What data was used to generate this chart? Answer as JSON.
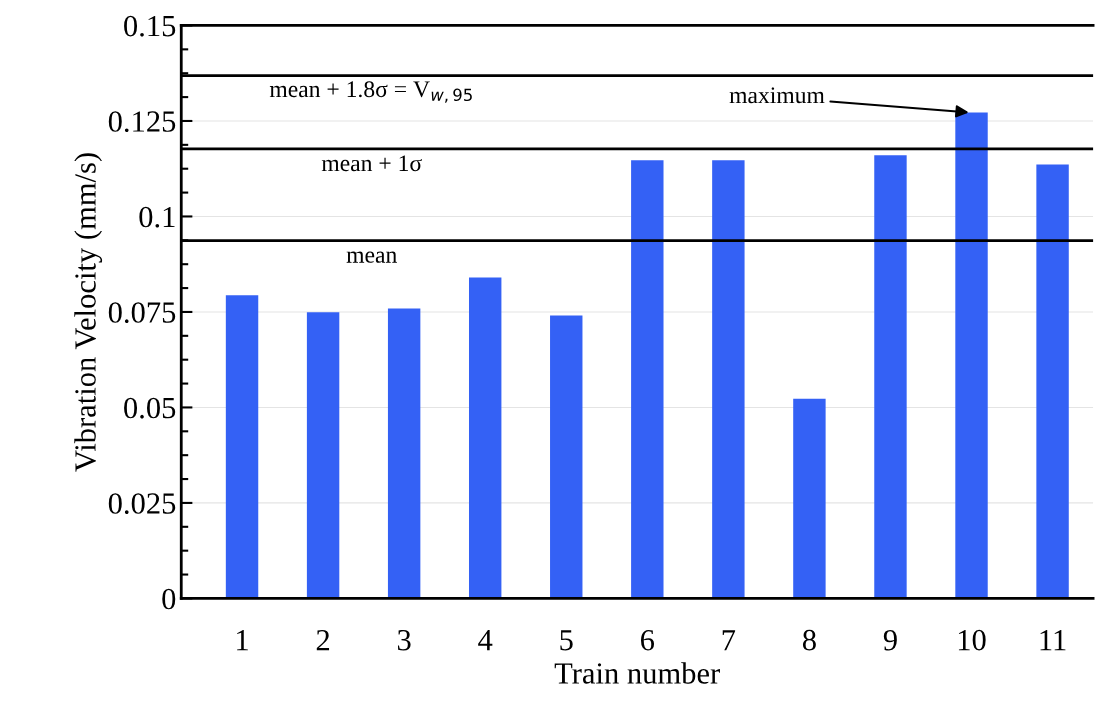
{
  "chart_data": {
    "type": "bar",
    "xlabel": "Train number",
    "ylabel": "Vibration Velocity (mm/s)",
    "categories": [
      "1",
      "2",
      "3",
      "4",
      "5",
      "6",
      "7",
      "8",
      "9",
      "10",
      "11"
    ],
    "values": [
      0.0794,
      0.0749,
      0.0759,
      0.084,
      0.0741,
      0.1147,
      0.1147,
      0.0523,
      0.116,
      0.1272,
      0.1136
    ],
    "color": "#3461f5",
    "ylim": [
      0,
      0.15
    ],
    "yticks": [
      0,
      0.025,
      0.05,
      0.075,
      0.1,
      0.125,
      0.15
    ],
    "grid": "y",
    "ref_lines": [
      {
        "axis": "y",
        "value": 0.0937,
        "label": "mean",
        "color": "#000000"
      },
      {
        "axis": "y",
        "value": 0.1177,
        "label": "mean + 1σ",
        "color": "#000000"
      },
      {
        "axis": "y",
        "value": 0.1369,
        "label": "mean + 1.8σ = V$_{w,95}$",
        "color": "#000000"
      }
    ],
    "annotations": [
      {
        "text": "maximum",
        "x": "10",
        "y": 0.1272
      }
    ]
  }
}
